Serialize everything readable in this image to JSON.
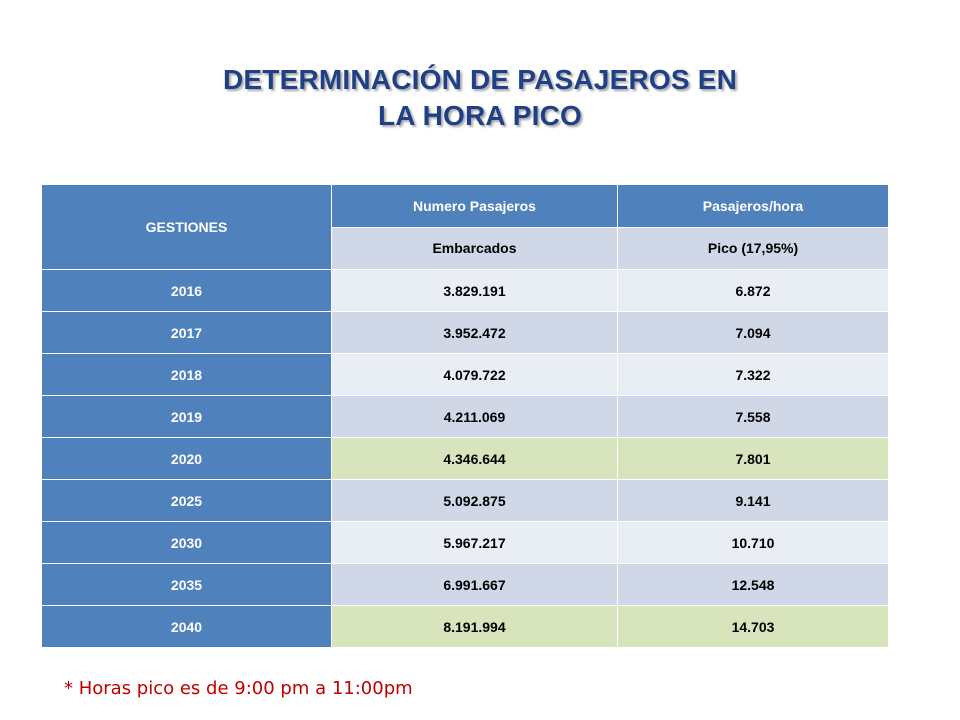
{
  "title": {
    "line1": "DETERMINACIÓN DE PASAJEROS EN",
    "line2": "LA HORA PICO"
  },
  "table": {
    "header": {
      "gestiones": "GESTIONES",
      "numero_pasajeros": "Numero Pasajeros",
      "pasajeros_hora": "Pasajeros/hora",
      "embarcados": "Embarcados",
      "pico": "Pico (17,95%)"
    },
    "rows": [
      {
        "year": "2016",
        "embarcados": "3.829.191",
        "pico": "6.872",
        "shade": "light"
      },
      {
        "year": "2017",
        "embarcados": "3.952.472",
        "pico": "7.094",
        "shade": "med"
      },
      {
        "year": "2018",
        "embarcados": "4.079.722",
        "pico": "7.322",
        "shade": "light"
      },
      {
        "year": "2019",
        "embarcados": "4.211.069",
        "pico": "7.558",
        "shade": "med"
      },
      {
        "year": "2020",
        "embarcados": "4.346.644",
        "pico": "7.801",
        "shade": "green"
      },
      {
        "year": "2025",
        "embarcados": "5.092.875",
        "pico": "9.141",
        "shade": "med"
      },
      {
        "year": "2030",
        "embarcados": "5.967.217",
        "pico": "10.710",
        "shade": "light"
      },
      {
        "year": "2035",
        "embarcados": "6.991.667",
        "pico": "12.548",
        "shade": "med"
      },
      {
        "year": "2040",
        "embarcados": "8.191.994",
        "pico": "14.703",
        "shade": "green"
      }
    ]
  },
  "footnote": "* Horas pico es de 9:00 pm a 11:00pm",
  "colors": {
    "title": "#1f3f86",
    "header_dark": "#4f81bd",
    "header_light": "#d0d8e8",
    "row_light": "#e9edf4",
    "row_med": "#d0d8e8",
    "row_green": "#d8e4bc",
    "footnote": "#c00000"
  }
}
